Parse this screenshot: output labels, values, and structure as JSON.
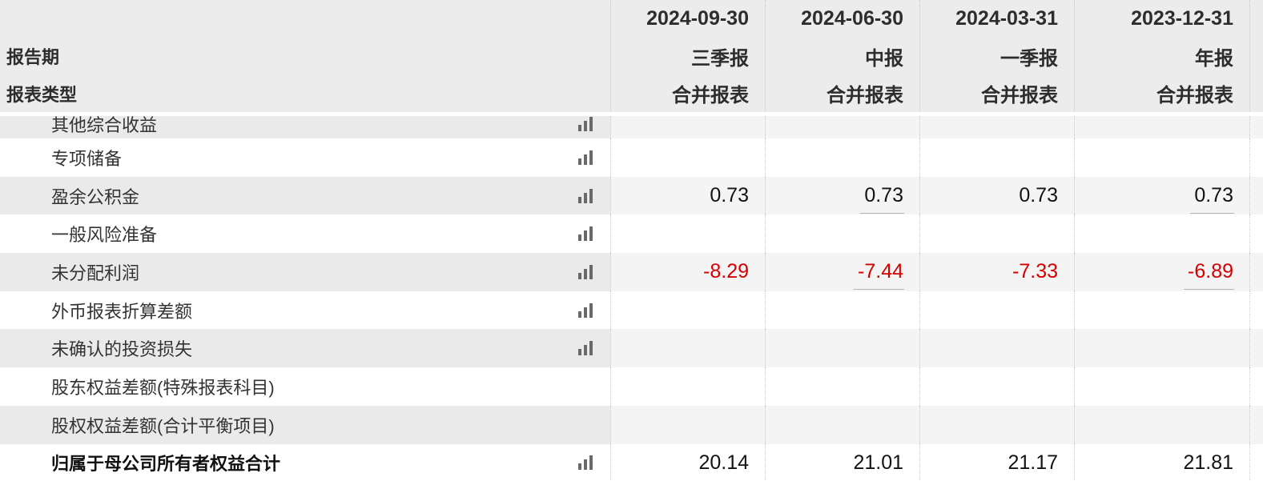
{
  "table": {
    "header": {
      "row_label_1": "报告期",
      "row_label_2": "报表类型",
      "columns": [
        {
          "date": "2024-09-30",
          "period": "三季报",
          "report_type": "合并报表"
        },
        {
          "date": "2024-06-30",
          "period": "中报",
          "report_type": "合并报表"
        },
        {
          "date": "2024-03-31",
          "period": "一季报",
          "report_type": "合并报表"
        },
        {
          "date": "2023-12-31",
          "period": "年报",
          "report_type": "合并报表"
        }
      ]
    },
    "rows": [
      {
        "label": "其他综合收益",
        "has_icon": true,
        "clipped": true,
        "values": [
          "",
          "",
          "",
          ""
        ]
      },
      {
        "label": "专项储备",
        "has_icon": true,
        "values": [
          "",
          "",
          "",
          ""
        ]
      },
      {
        "label": "盈余公积金",
        "has_icon": true,
        "values": [
          "0.73",
          "0.73",
          "0.73",
          "0.73"
        ],
        "underline": [
          false,
          true,
          false,
          true
        ]
      },
      {
        "label": "一般风险准备",
        "has_icon": true,
        "values": [
          "",
          "",
          "",
          ""
        ]
      },
      {
        "label": "未分配利润",
        "has_icon": true,
        "values": [
          "-8.29",
          "-7.44",
          "-7.33",
          "-6.89"
        ],
        "underline": [
          false,
          true,
          false,
          true
        ]
      },
      {
        "label": "外币报表折算差额",
        "has_icon": true,
        "values": [
          "",
          "",
          "",
          ""
        ]
      },
      {
        "label": "未确认的投资损失",
        "has_icon": true,
        "values": [
          "",
          "",
          "",
          ""
        ]
      },
      {
        "label": "股东权益差额(特殊报表科目)",
        "has_icon": false,
        "values": [
          "",
          "",
          "",
          ""
        ]
      },
      {
        "label": "股权权益差额(合计平衡项目)",
        "has_icon": false,
        "values": [
          "",
          "",
          "",
          ""
        ]
      },
      {
        "label": "归属于母公司所有者权益合计",
        "has_icon": true,
        "bold": true,
        "values": [
          "20.14",
          "21.01",
          "21.17",
          "21.81"
        ]
      }
    ]
  },
  "icons": {
    "row_chart_icon": "bar-chart-icon"
  },
  "colors": {
    "header_bg": "#ececec",
    "stripe_label_bg": "#eaeaea",
    "stripe_cell_bg": "#f4f4f4",
    "row_white_bg": "#ffffff",
    "negative_value": "#d60000",
    "value_text": "#131313",
    "label_text": "#333333",
    "header_text": "#2d2d2d",
    "divider_dotted": "#c8c8c8",
    "underline": "#b3b3b3",
    "icon_gray": "#696969"
  }
}
